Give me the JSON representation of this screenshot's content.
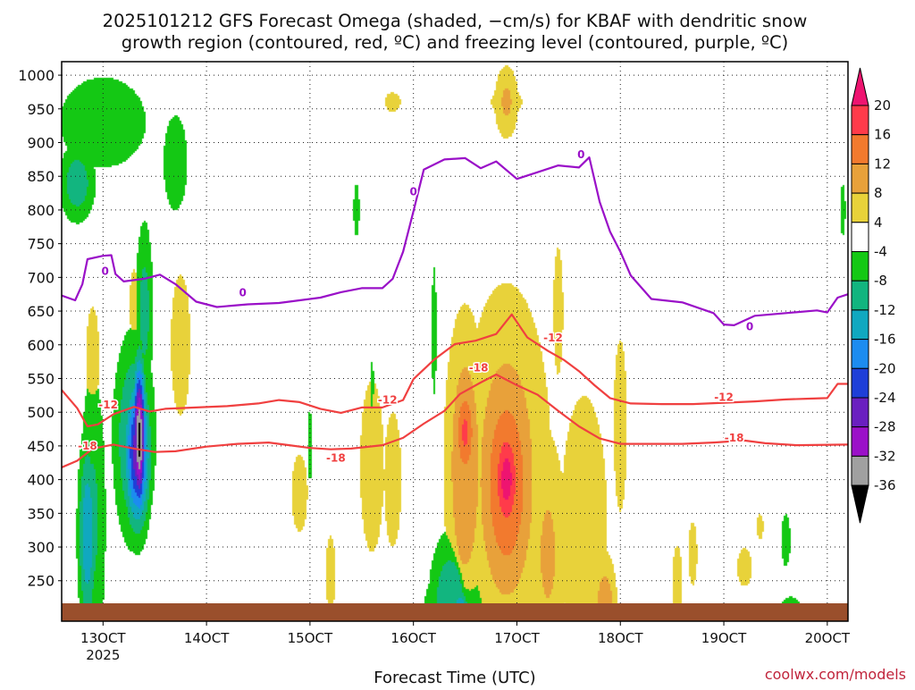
{
  "chart_data": {
    "type": "heatmap",
    "title_lines": [
      "2025101212 GFS Forecast Omega (shaded, −cm/s) for KBAF with dendritic snow",
      "growth region (contoured, red, ºC) and freezing level (contoured, purple, ºC)"
    ],
    "xlabel": "Forecast Time (UTC)",
    "ylabel": "",
    "credit": "coolwx.com/models",
    "x_axis": {
      "unit": "forecast hours",
      "range": [
        -10,
        66
      ],
      "ticks": [
        {
          "x": -6,
          "label": "13OCT",
          "sublabel": "2025"
        },
        {
          "x": 4,
          "label": "14OCT"
        },
        {
          "x": 14,
          "label": "15OCT"
        },
        {
          "x": 24,
          "label": "16OCT"
        },
        {
          "x": 34,
          "label": "17OCT"
        },
        {
          "x": 44,
          "label": "18OCT"
        },
        {
          "x": 54,
          "label": "19OCT"
        },
        {
          "x": 64,
          "label": "20OCT"
        }
      ]
    },
    "y_axis": {
      "unit": "hPa",
      "range": [
        1020,
        190
      ],
      "ticks": [
        250,
        300,
        350,
        400,
        450,
        500,
        550,
        600,
        650,
        700,
        750,
        800,
        850,
        900,
        950,
        1000
      ]
    },
    "grid": true,
    "ground_color": "#9a4f2c",
    "colorbar": {
      "ticks": [
        20,
        16,
        12,
        8,
        4,
        -4,
        -8,
        -12,
        -16,
        -20,
        -24,
        -28,
        -32,
        -36
      ],
      "bins": [
        {
          "lo": 16,
          "hi": 20,
          "color": "#ff3b4a"
        },
        {
          "lo": 12,
          "hi": 16,
          "color": "#f27a2e"
        },
        {
          "lo": 8,
          "hi": 12,
          "color": "#e8a13a"
        },
        {
          "lo": 4,
          "hi": 8,
          "color": "#e8d23a"
        },
        {
          "lo": -4,
          "hi": 4,
          "color": "#ffffff"
        },
        {
          "lo": -8,
          "hi": -4,
          "color": "#14c814"
        },
        {
          "lo": -12,
          "hi": -8,
          "color": "#12b57f"
        },
        {
          "lo": -16,
          "hi": -12,
          "color": "#10a8c0"
        },
        {
          "lo": -20,
          "hi": -16,
          "color": "#1c8cf0"
        },
        {
          "lo": -24,
          "hi": -20,
          "color": "#1e3fd8"
        },
        {
          "lo": -28,
          "hi": -24,
          "color": "#6a1fc0"
        },
        {
          "lo": -32,
          "hi": -28,
          "color": "#9b10c8"
        },
        {
          "lo": -36,
          "hi": -32,
          "color": "#a0a0a0"
        }
      ],
      "top_arrow_color": "#ee1470",
      "bottom_arrow_color": "#000000"
    },
    "omega_features": [
      {
        "x": 33,
        "p": 400,
        "rx": 1.5,
        "rp": 100,
        "value": 22
      },
      {
        "x": 33,
        "p": 395,
        "rx": 3.0,
        "rp": 200,
        "value": 16
      },
      {
        "x": 33,
        "p": 420,
        "rx": 4.3,
        "rp": 270,
        "value": 11
      },
      {
        "x": 29,
        "p": 470,
        "rx": 1.1,
        "rp": 80,
        "value": 17
      },
      {
        "x": 29,
        "p": 420,
        "rx": 2.0,
        "rp": 230,
        "value": 12
      },
      {
        "x": 37,
        "p": 290,
        "rx": 2.0,
        "rp": 190,
        "value": 9
      },
      {
        "x": 36.5,
        "p": 300,
        "rx": 3.6,
        "rp": 280,
        "value": 6
      },
      {
        "x": 42.5,
        "p": 200,
        "rx": 1.2,
        "rp": 90,
        "value": 12
      },
      {
        "x": 40.5,
        "p": 330,
        "rx": 3.0,
        "rp": 260,
        "value": 7
      },
      {
        "x": 44,
        "p": 480,
        "rx": 1.0,
        "rp": 200,
        "value": 6
      },
      {
        "x": 22,
        "p": 400,
        "rx": 1.0,
        "rp": 120,
        "value": 8
      },
      {
        "x": 20,
        "p": 420,
        "rx": 1.8,
        "rp": 200,
        "value": 6
      },
      {
        "x": 13,
        "p": 380,
        "rx": 1.2,
        "rp": 90,
        "value": 6
      },
      {
        "x": 16,
        "p": 260,
        "rx": 1.0,
        "rp": 120,
        "value": 5
      },
      {
        "x": 1.5,
        "p": 600,
        "rx": 2.0,
        "rp": 220,
        "value": 5
      },
      {
        "x": -7,
        "p": 580,
        "rx": 1.0,
        "rp": 120,
        "value": 6
      },
      {
        "x": -3,
        "p": 660,
        "rx": 0.9,
        "rp": 110,
        "value": 5
      },
      {
        "x": 33,
        "p": 960,
        "rx": 1.3,
        "rp": 60,
        "value": 9
      },
      {
        "x": 33,
        "p": 960,
        "rx": 3.2,
        "rp": 40,
        "value": 5
      },
      {
        "x": 22,
        "p": 960,
        "rx": 1.6,
        "rp": 30,
        "value": 5
      },
      {
        "x": 38,
        "p": 650,
        "rx": 1.0,
        "rp": 200,
        "value": 5
      },
      {
        "x": 49.5,
        "p": 250,
        "rx": 1.0,
        "rp": 110,
        "value": 5
      },
      {
        "x": 56,
        "p": 270,
        "rx": 1.5,
        "rp": 60,
        "value": 5
      },
      {
        "x": 57.5,
        "p": 330,
        "rx": 0.7,
        "rp": 40,
        "value": 5
      },
      {
        "x": 51,
        "p": 290,
        "rx": 0.9,
        "rp": 100,
        "value": 5
      },
      {
        "x": -3.5,
        "p": 400,
        "rx": 1.5,
        "rp": 80,
        "value": -6
      },
      {
        "x": -2.5,
        "p": 460,
        "rx": 0.6,
        "rp": 110,
        "value": -38
      },
      {
        "x": -2.7,
        "p": 440,
        "rx": 1.2,
        "rp": 110,
        "value": -27
      },
      {
        "x": -3,
        "p": 460,
        "rx": 1.9,
        "rp": 150,
        "value": -14
      },
      {
        "x": -2,
        "p": 650,
        "rx": 0.9,
        "rp": 140,
        "value": -10
      },
      {
        "x": -7,
        "p": 340,
        "rx": 1.4,
        "rp": 240,
        "value": -9
      },
      {
        "x": -7.5,
        "p": 320,
        "rx": 0.9,
        "rp": 140,
        "value": -16
      },
      {
        "x": -6,
        "p": 930,
        "rx": 5.0,
        "rp": 80,
        "value": -8
      },
      {
        "x": -8.5,
        "p": 840,
        "rx": 1.8,
        "rp": 60,
        "value": -11
      },
      {
        "x": 1,
        "p": 870,
        "rx": 1.8,
        "rp": 110,
        "value": -6
      },
      {
        "x": 28,
        "p": 205,
        "rx": 3.6,
        "rp": 90,
        "value": -8
      },
      {
        "x": 27.5,
        "p": 210,
        "rx": 2.0,
        "rp": 110,
        "value": -12
      },
      {
        "x": 28.5,
        "p": 200,
        "rx": 0.8,
        "rp": 40,
        "value": -18
      },
      {
        "x": 60,
        "p": 310,
        "rx": 0.7,
        "rp": 60,
        "value": -6
      },
      {
        "x": 60.5,
        "p": 210,
        "rx": 1.5,
        "rp": 25,
        "value": -6
      },
      {
        "x": 65.5,
        "p": 800,
        "rx": 0.4,
        "rp": 60,
        "value": -6
      },
      {
        "x": 20,
        "p": 500,
        "rx": 0.5,
        "rp": 160,
        "value": -5
      },
      {
        "x": 14,
        "p": 450,
        "rx": 0.5,
        "rp": 110,
        "value": -5
      },
      {
        "x": 26,
        "p": 620,
        "rx": 0.5,
        "rp": 200,
        "value": -5
      },
      {
        "x": 18.5,
        "p": 800,
        "rx": 0.6,
        "rp": 80,
        "value": -5
      }
    ],
    "contours": [
      {
        "name": "-18",
        "color": "#f04040",
        "points": [
          [
            -10,
            418
          ],
          [
            -8.5,
            428
          ],
          [
            -7,
            446
          ],
          [
            -5,
            452
          ],
          [
            -3,
            446
          ],
          [
            -1,
            441
          ],
          [
            1,
            442
          ],
          [
            4,
            449
          ],
          [
            7,
            453
          ],
          [
            10,
            455
          ],
          [
            12,
            451
          ],
          [
            14,
            447
          ],
          [
            16,
            445
          ],
          [
            18,
            446
          ],
          [
            21,
            451
          ],
          [
            23,
            462
          ],
          [
            25,
            483
          ],
          [
            27,
            502
          ],
          [
            28.5,
            527
          ],
          [
            30.5,
            544
          ],
          [
            32,
            556
          ],
          [
            34,
            540
          ],
          [
            36,
            526
          ],
          [
            38,
            502
          ],
          [
            40,
            479
          ],
          [
            42,
            461
          ],
          [
            44,
            453
          ],
          [
            47,
            453
          ],
          [
            50,
            453
          ],
          [
            53,
            455
          ],
          [
            56,
            458
          ],
          [
            58,
            454
          ],
          [
            61,
            451
          ],
          [
            66,
            452
          ]
        ],
        "labels": [
          [
            -7.5,
            450,
            "-18"
          ],
          [
            16.5,
            432,
            "-18"
          ],
          [
            30.3,
            566,
            "-18"
          ],
          [
            55,
            462,
            "-18"
          ]
        ]
      },
      {
        "name": "-12",
        "color": "#f04040",
        "points": [
          [
            -10,
            533
          ],
          [
            -8.5,
            506
          ],
          [
            -7.5,
            479
          ],
          [
            -6.5,
            482
          ],
          [
            -5,
            497
          ],
          [
            -3,
            508
          ],
          [
            -1.5,
            501
          ],
          [
            0,
            505
          ],
          [
            3,
            507
          ],
          [
            6,
            509
          ],
          [
            9,
            513
          ],
          [
            11,
            518
          ],
          [
            13,
            515
          ],
          [
            15,
            505
          ],
          [
            17,
            499
          ],
          [
            19,
            507
          ],
          [
            21,
            507
          ],
          [
            23,
            518
          ],
          [
            24,
            549
          ],
          [
            26,
            578
          ],
          [
            28,
            601
          ],
          [
            30,
            606
          ],
          [
            32,
            616
          ],
          [
            33.5,
            645
          ],
          [
            35,
            611
          ],
          [
            37,
            591
          ],
          [
            38.5,
            578
          ],
          [
            40,
            561
          ],
          [
            41.5,
            540
          ],
          [
            43,
            521
          ],
          [
            45,
            513
          ],
          [
            48,
            512
          ],
          [
            51,
            512
          ],
          [
            54,
            514
          ],
          [
            57,
            516
          ],
          [
            60,
            519
          ],
          [
            62,
            520
          ],
          [
            64,
            521
          ],
          [
            65,
            542
          ],
          [
            66,
            542
          ]
        ],
        "labels": [
          [
            -5.5,
            511,
            "-12"
          ],
          [
            21.5,
            518,
            "-12"
          ],
          [
            37.5,
            610,
            "-12"
          ],
          [
            54,
            522,
            "-12"
          ]
        ]
      },
      {
        "name": "0",
        "color": "#9a10c8",
        "points": [
          [
            -10,
            673
          ],
          [
            -8.7,
            666
          ],
          [
            -8,
            690
          ],
          [
            -7.5,
            727
          ],
          [
            -6,
            732
          ],
          [
            -5.2,
            733
          ],
          [
            -4.8,
            705
          ],
          [
            -4,
            694
          ],
          [
            -2,
            698
          ],
          [
            -0.5,
            704
          ],
          [
            1,
            690
          ],
          [
            3,
            664
          ],
          [
            5,
            656
          ],
          [
            8,
            660
          ],
          [
            11,
            662
          ],
          [
            13,
            666
          ],
          [
            15,
            670
          ],
          [
            17,
            678
          ],
          [
            19,
            684
          ],
          [
            21,
            684
          ],
          [
            22,
            698
          ],
          [
            23,
            738
          ],
          [
            24,
            798
          ],
          [
            25,
            860
          ],
          [
            27,
            875
          ],
          [
            29,
            877
          ],
          [
            30.5,
            862
          ],
          [
            32,
            872
          ],
          [
            34,
            846
          ],
          [
            36,
            856
          ],
          [
            38,
            866
          ],
          [
            40,
            863
          ],
          [
            41,
            878
          ],
          [
            42,
            812
          ],
          [
            43,
            768
          ],
          [
            44,
            738
          ],
          [
            45,
            703
          ],
          [
            47,
            668
          ],
          [
            50,
            663
          ],
          [
            53,
            647
          ],
          [
            54,
            630
          ],
          [
            55,
            629
          ],
          [
            57,
            643
          ],
          [
            60,
            647
          ],
          [
            63,
            651
          ],
          [
            64,
            648
          ],
          [
            65,
            670
          ],
          [
            66,
            675
          ]
        ],
        "labels": [
          [
            -5.8,
            709,
            "0"
          ],
          [
            7.5,
            677,
            "0"
          ],
          [
            24,
            827,
            "0"
          ],
          [
            40.2,
            882,
            "0"
          ],
          [
            56.5,
            627,
            "0"
          ]
        ]
      }
    ]
  }
}
